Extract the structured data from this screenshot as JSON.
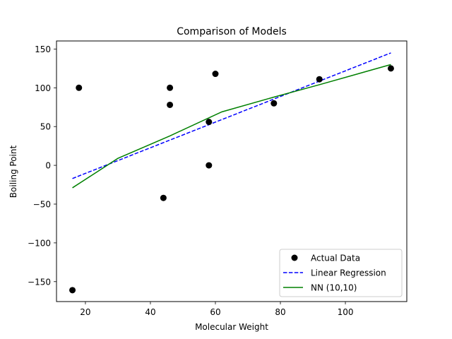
{
  "chart_data": {
    "type": "scatter",
    "title": "Comparison of Models",
    "xlabel": "Molecular Weight",
    "ylabel": "Boiling Point",
    "xlim": [
      11.1,
      118.9
    ],
    "ylim": [
      -175.7,
      160.4
    ],
    "xticks": [
      20,
      40,
      60,
      80,
      100
    ],
    "yticks": [
      -150,
      -100,
      -50,
      0,
      50,
      100,
      150
    ],
    "xtick_labels": [
      "20",
      "40",
      "60",
      "80",
      "100"
    ],
    "ytick_labels": [
      "−150",
      "−100",
      "−50",
      "0",
      "50",
      "100",
      "150"
    ],
    "grid": false,
    "legend_position": "lower-right",
    "series": [
      {
        "name": "Actual Data",
        "kind": "scatter",
        "color": "#000000",
        "points": [
          [
            16,
            -161
          ],
          [
            18,
            100
          ],
          [
            44,
            -42
          ],
          [
            46,
            78
          ],
          [
            46,
            100
          ],
          [
            58,
            0
          ],
          [
            58,
            56
          ],
          [
            60,
            118
          ],
          [
            78,
            80
          ],
          [
            92,
            111
          ],
          [
            114,
            125
          ]
        ]
      },
      {
        "name": "Linear Regression",
        "kind": "line",
        "style": "dashed",
        "color": "#0000ff",
        "points": [
          [
            16,
            -17
          ],
          [
            114,
            145
          ]
        ]
      },
      {
        "name": "NN (10,10)",
        "kind": "line",
        "style": "solid",
        "color": "#008000",
        "points": [
          [
            16,
            -29
          ],
          [
            30,
            9
          ],
          [
            46,
            38
          ],
          [
            62,
            69
          ],
          [
            78,
            88
          ],
          [
            92,
            104
          ],
          [
            114,
            130
          ]
        ]
      }
    ]
  }
}
